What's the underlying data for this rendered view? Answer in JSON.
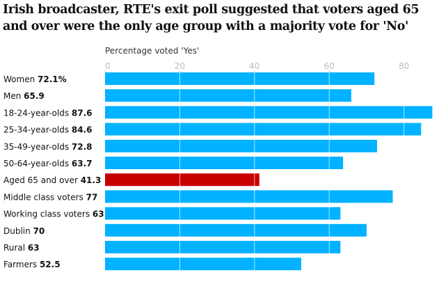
{
  "chart_data": {
    "type": "bar",
    "orientation": "horizontal",
    "title": "Irish broadcaster, RTE's exit poll suggested that voters aged 65 and over were the only age group with a majority vote for 'No'",
    "xlabel": "Percentage voted 'Yes'",
    "xlim": [
      0,
      88
    ],
    "ticks": [
      0,
      20,
      40,
      60,
      80
    ],
    "categories": [
      "Women",
      "Men",
      "18-24-year-olds",
      "25-34-year-olds",
      "35-49-year-olds",
      "50-64-year-olds",
      "Aged 65 and over",
      "Middle class voters",
      "Working class voters",
      "Dublin",
      "Rural",
      "Farmers"
    ],
    "value_labels": [
      "72.1%",
      "65.9",
      "87.6",
      "84.6",
      "72.8",
      "63.7",
      "41.3",
      "77",
      "63",
      "70",
      "63",
      "52.5"
    ],
    "values": [
      72.1,
      65.9,
      87.6,
      84.6,
      72.8,
      63.7,
      41.3,
      77,
      63,
      70,
      63,
      52.5
    ],
    "highlight_index": 6,
    "colors": {
      "bar": "#00b2ff",
      "highlight": "#c70000"
    }
  }
}
